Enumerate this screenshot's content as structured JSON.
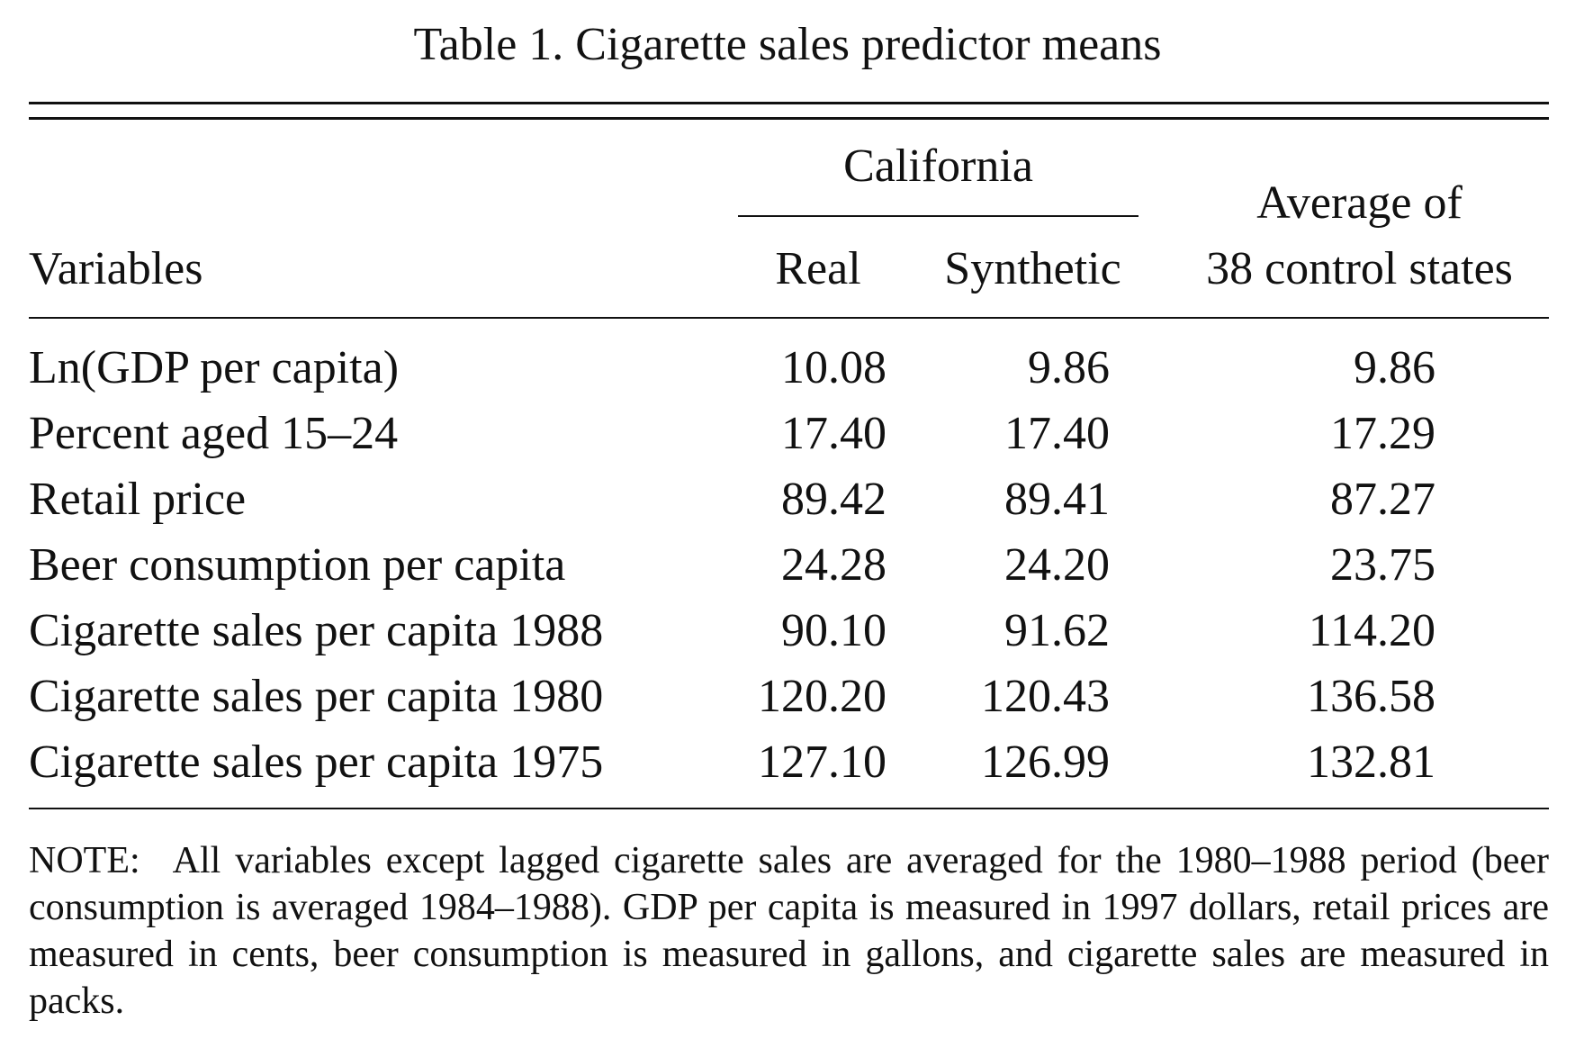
{
  "table": {
    "title": "Table 1.  Cigarette sales predictor means",
    "headers": {
      "group": "California",
      "variables": "Variables",
      "real": "Real",
      "synthetic": "Synthetic",
      "average_line1": "Average of",
      "average_line2": "38 control states"
    },
    "rows": [
      {
        "label": "Ln(GDP per capita)",
        "real": "10.08",
        "synthetic": "9.86",
        "average": "9.86"
      },
      {
        "label": "Percent aged 15–24",
        "real": "17.40",
        "synthetic": "17.40",
        "average": "17.29"
      },
      {
        "label": "Retail price",
        "real": "89.42",
        "synthetic": "89.41",
        "average": "87.27"
      },
      {
        "label": "Beer consumption per capita",
        "real": "24.28",
        "synthetic": "24.20",
        "average": "23.75"
      },
      {
        "label": "Cigarette sales per capita 1988",
        "real": "90.10",
        "synthetic": "91.62",
        "average": "114.20"
      },
      {
        "label": "Cigarette sales per capita 1980",
        "real": "120.20",
        "synthetic": "120.43",
        "average": "136.58"
      },
      {
        "label": "Cigarette sales per capita 1975",
        "real": "127.10",
        "synthetic": "126.99",
        "average": "132.81"
      }
    ],
    "note_label": "NOTE:",
    "note_text": "All variables except lagged cigarette sales are averaged for the 1980–1988 period (beer consumption is averaged 1984–1988). GDP per capita is measured in 1997 dollars, retail prices are measured in cents, beer consumption is measured in gallons, and cigarette sales are measured in packs."
  }
}
